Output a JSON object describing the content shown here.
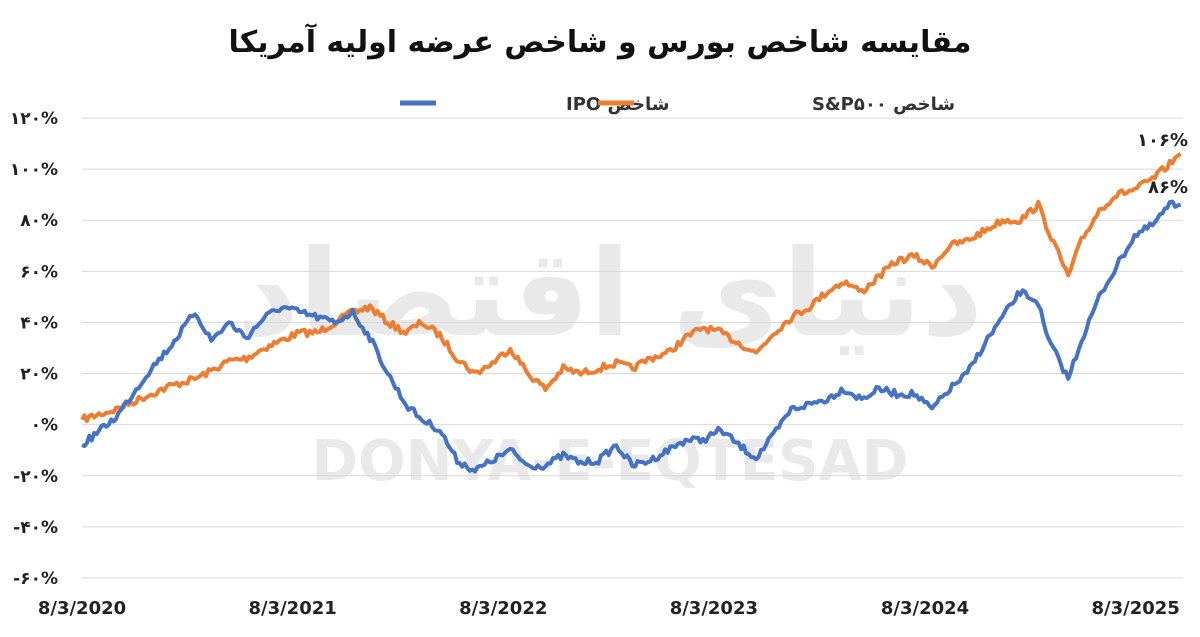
{
  "chart_data": {
    "type": "line",
    "title": "مقایسه شاخص بورس و شاخص عرضه اولیه آمریکا",
    "xlabel": "",
    "ylabel": "",
    "ylim": [
      -60,
      120
    ],
    "yticks": [
      120,
      100,
      80,
      60,
      40,
      20,
      0,
      -20,
      -40,
      -60
    ],
    "ytick_labels": [
      "۱۲۰%",
      "۱۰۰%",
      "۸۰%",
      "۶۰%",
      "۴۰%",
      "۲۰%",
      "۰%",
      "-۲۰%",
      "-۴۰%",
      "-۶۰%"
    ],
    "x_tick_labels": [
      "8/3/2020",
      "8/3/2021",
      "8/3/2022",
      "8/3/2023",
      "8/3/2024",
      "8/3/2025"
    ],
    "x_tick_dates": [
      "2020-08-03",
      "2021-08-03",
      "2022-08-03",
      "2023-08-03",
      "2024-08-03",
      "2025-08-03"
    ],
    "grid": true,
    "legend_position": "top-center",
    "series": [
      {
        "name": "شاخص IPO",
        "color": "#4472c4",
        "end_label": "۸۶%",
        "points": [
          [
            "2020-08-03",
            -8
          ],
          [
            "2020-10-01",
            3
          ],
          [
            "2020-12-01",
            22
          ],
          [
            "2021-01-01",
            30
          ],
          [
            "2021-02-15",
            44
          ],
          [
            "2021-03-15",
            33
          ],
          [
            "2021-04-15",
            40
          ],
          [
            "2021-05-15",
            34
          ],
          [
            "2021-06-15",
            42
          ],
          [
            "2021-07-15",
            46
          ],
          [
            "2021-08-15",
            44
          ],
          [
            "2021-09-15",
            42
          ],
          [
            "2021-10-15",
            40
          ],
          [
            "2021-11-15",
            44
          ],
          [
            "2021-12-15",
            34
          ],
          [
            "2022-01-15",
            20
          ],
          [
            "2022-02-15",
            8
          ],
          [
            "2022-03-15",
            2
          ],
          [
            "2022-04-15",
            -2
          ],
          [
            "2022-05-15",
            -14
          ],
          [
            "2022-06-15",
            -18
          ],
          [
            "2022-07-15",
            -14
          ],
          [
            "2022-08-15",
            -10
          ],
          [
            "2022-09-15",
            -16
          ],
          [
            "2022-10-15",
            -16
          ],
          [
            "2022-11-15",
            -12
          ],
          [
            "2022-12-15",
            -15
          ],
          [
            "2023-01-15",
            -14
          ],
          [
            "2023-02-15",
            -8
          ],
          [
            "2023-03-15",
            -16
          ],
          [
            "2023-04-15",
            -14
          ],
          [
            "2023-05-15",
            -10
          ],
          [
            "2023-06-15",
            -6
          ],
          [
            "2023-07-15",
            -6
          ],
          [
            "2023-08-15",
            -2
          ],
          [
            "2023-09-15",
            -8
          ],
          [
            "2023-10-15",
            -13
          ],
          [
            "2023-11-15",
            -4
          ],
          [
            "2023-12-15",
            6
          ],
          [
            "2024-01-15",
            8
          ],
          [
            "2024-02-15",
            10
          ],
          [
            "2024-03-15",
            14
          ],
          [
            "2024-04-15",
            10
          ],
          [
            "2024-05-15",
            14
          ],
          [
            "2024-06-15",
            12
          ],
          [
            "2024-07-15",
            12
          ],
          [
            "2024-08-15",
            6
          ],
          [
            "2024-09-15",
            14
          ],
          [
            "2024-10-15",
            20
          ],
          [
            "2024-11-15",
            32
          ],
          [
            "2024-12-15",
            42
          ],
          [
            "2025-01-15",
            52
          ],
          [
            "2025-02-15",
            48
          ],
          [
            "2025-03-01",
            35
          ],
          [
            "2025-04-08",
            18
          ],
          [
            "2025-05-01",
            33
          ],
          [
            "2025-06-01",
            50
          ],
          [
            "2025-07-01",
            62
          ],
          [
            "2025-08-01",
            74
          ],
          [
            "2025-09-01",
            78
          ],
          [
            "2025-10-01",
            86
          ],
          [
            "2025-10-20",
            86
          ]
        ]
      },
      {
        "name": "شاخص S&P۵۰۰",
        "color": "#ed7d31",
        "end_label": "۱۰۶%",
        "points": [
          [
            "2020-08-03",
            2
          ],
          [
            "2020-10-01",
            6
          ],
          [
            "2020-12-01",
            12
          ],
          [
            "2021-01-01",
            15
          ],
          [
            "2021-02-15",
            18
          ],
          [
            "2021-03-15",
            21
          ],
          [
            "2021-04-15",
            25
          ],
          [
            "2021-05-15",
            26
          ],
          [
            "2021-06-15",
            30
          ],
          [
            "2021-07-15",
            33
          ],
          [
            "2021-08-15",
            36
          ],
          [
            "2021-09-15",
            36
          ],
          [
            "2021-10-15",
            40
          ],
          [
            "2021-11-15",
            44
          ],
          [
            "2021-12-15",
            46
          ],
          [
            "2022-01-15",
            40
          ],
          [
            "2022-02-15",
            36
          ],
          [
            "2022-03-15",
            40
          ],
          [
            "2022-04-15",
            35
          ],
          [
            "2022-05-15",
            26
          ],
          [
            "2022-06-15",
            20
          ],
          [
            "2022-07-15",
            24
          ],
          [
            "2022-08-15",
            30
          ],
          [
            "2022-09-15",
            20
          ],
          [
            "2022-10-15",
            14
          ],
          [
            "2022-11-15",
            22
          ],
          [
            "2022-12-15",
            20
          ],
          [
            "2023-01-15",
            22
          ],
          [
            "2023-02-15",
            24
          ],
          [
            "2023-03-15",
            22
          ],
          [
            "2023-04-15",
            26
          ],
          [
            "2023-05-15",
            28
          ],
          [
            "2023-06-15",
            34
          ],
          [
            "2023-07-15",
            38
          ],
          [
            "2023-08-15",
            36
          ],
          [
            "2023-09-15",
            32
          ],
          [
            "2023-10-15",
            28
          ],
          [
            "2023-11-15",
            36
          ],
          [
            "2023-12-15",
            42
          ],
          [
            "2024-01-15",
            46
          ],
          [
            "2024-02-15",
            52
          ],
          [
            "2024-03-15",
            56
          ],
          [
            "2024-04-15",
            52
          ],
          [
            "2024-05-15",
            58
          ],
          [
            "2024-06-15",
            64
          ],
          [
            "2024-07-15",
            66
          ],
          [
            "2024-08-15",
            62
          ],
          [
            "2024-09-15",
            70
          ],
          [
            "2024-10-15",
            72
          ],
          [
            "2024-11-15",
            76
          ],
          [
            "2024-12-15",
            80
          ],
          [
            "2025-01-15",
            80
          ],
          [
            "2025-02-15",
            86
          ],
          [
            "2025-03-01",
            78
          ],
          [
            "2025-04-08",
            58
          ],
          [
            "2025-05-01",
            72
          ],
          [
            "2025-06-01",
            84
          ],
          [
            "2025-07-01",
            90
          ],
          [
            "2025-08-01",
            92
          ],
          [
            "2025-09-01",
            96
          ],
          [
            "2025-10-01",
            102
          ],
          [
            "2025-10-20",
            106
          ]
        ]
      }
    ]
  },
  "watermark": {
    "persian": "دنیای اقتصاد",
    "latin": "DONYA-E-EQTESAD"
  }
}
